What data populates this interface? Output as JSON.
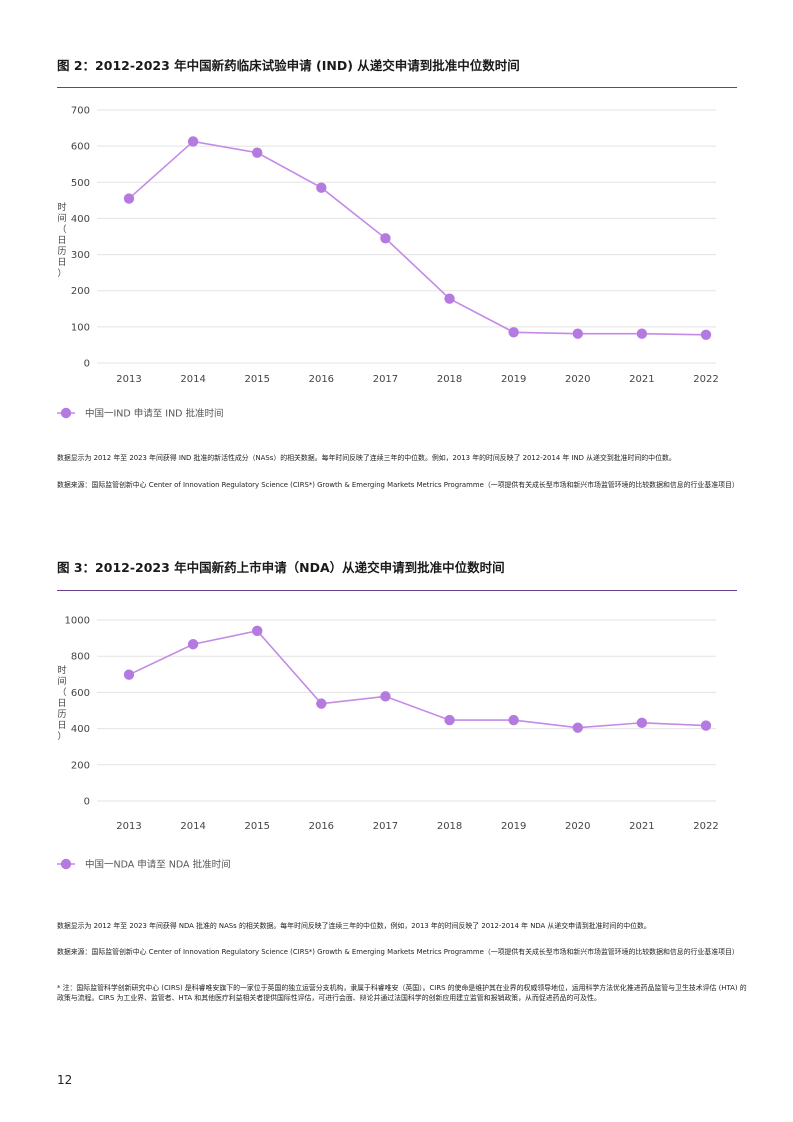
{
  "figure2": {
    "title": "图 2：2012-2023 年中国新药临床试验申请 (IND) 从递交申请到批准中位数时间",
    "note": "数据显示为 2012 年至 2023 年间获得 IND 批准的新活性成分（NASs）的相关数据。每年时间反映了连续三年的中位数。例如，2013 年的时间反映了 2012-2014 年 IND 从递交到批准时间的中位数。",
    "source": "数据来源：国际监管创新中心 Center of Innovation Regulatory Science (CIRS*) Growth & Emerging Markets Metrics Programme（一项提供有关成长型市场和新兴市场监管环境的比较数据和信息的行业基准项目）"
  },
  "figure3": {
    "title": "图 3：2012-2023 年中国新药上市申请（NDA）从递交申请到批准中位数时间",
    "note": "数据显示为 2012 年至 2023 年间获得 NDA 批准的 NASs 的相关数据。每年时间反映了连续三年的中位数，例如，2013 年的时间反映了 2012-2014 年 NDA 从递交申请到批准时间的中位数。",
    "source": "数据来源：国际监管创新中心 Center of Innovation Regulatory Science (CIRS*) Growth & Emerging Markets Metrics Programme（一项提供有关成长型市场和新兴市场监管环境的比较数据和信息的行业基准项目）"
  },
  "footnote": "* 注：国际监管科学创新研究中心 (CIRS) 是科睿唯安旗下的一家位于英国的独立运营分支机构，隶属于科睿唯安（英国）。CIRS 的使命是维护其在业界的权威领导地位，运用科学方法优化推进药品监管与卫生技术评估 (HTA) 的政策与流程。CIRS 为工业界、监管者、HTA 和其他医疗利益相关者提供国际性评估，可进行会面、辩论并通过法国科学的创新应用建立监管和报销政策，从而促进药品的可及性。",
  "page_number": "12",
  "colors": {
    "accent": "#6b3f8e",
    "series": "#b57ae0",
    "line": "#c48ae6",
    "grid": "#e3e3e3"
  },
  "chart_data": [
    {
      "type": "line",
      "ylabel": "时间（日历日）",
      "ylim": [
        0,
        700
      ],
      "yticks": [
        0,
        100,
        200,
        300,
        400,
        500,
        600,
        700
      ],
      "x": [
        "2013",
        "2014",
        "2015",
        "2016",
        "2017",
        "2018",
        "2019",
        "2020",
        "2021",
        "2022"
      ],
      "series": [
        {
          "name": "中国一IND 申请至 IND 批准时间",
          "values": [
            455,
            613,
            582,
            485,
            345,
            178,
            85,
            81,
            81,
            78
          ]
        }
      ],
      "grid": true,
      "legend": "bottom-left"
    },
    {
      "type": "line",
      "ylabel": "时间（日历日）",
      "ylim": [
        0,
        1000
      ],
      "yticks": [
        0,
        200,
        400,
        600,
        800,
        1000
      ],
      "x": [
        "2013",
        "2014",
        "2015",
        "2016",
        "2017",
        "2018",
        "2019",
        "2020",
        "2021",
        "2022"
      ],
      "series": [
        {
          "name": "中国一NDA 申请至 NDA 批准时间",
          "values": [
            698,
            866,
            940,
            538,
            578,
            447,
            447,
            405,
            432,
            417
          ]
        }
      ],
      "grid": true,
      "legend": "bottom-left"
    }
  ]
}
